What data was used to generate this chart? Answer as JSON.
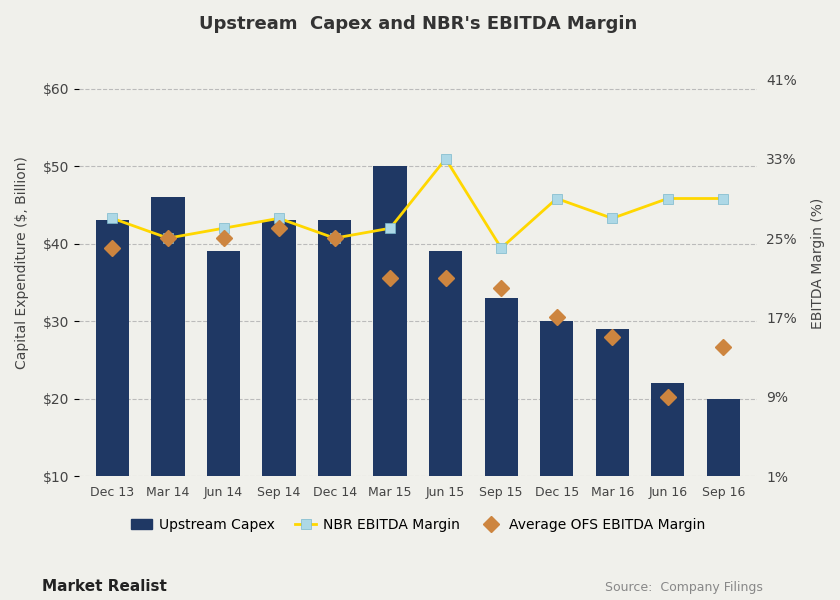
{
  "title": "Upstream  Capex and NBR's EBITDA Margin",
  "categories": [
    "Dec 13",
    "Mar 14",
    "Jun 14",
    "Sep 14",
    "Dec 14",
    "Mar 15",
    "Jun 15",
    "Sep 15",
    "Dec 15",
    "Mar 16",
    "Jun 16",
    "Sep 16"
  ],
  "capex": [
    43,
    46,
    39,
    43,
    43,
    50,
    39,
    33,
    30,
    29,
    22,
    20
  ],
  "nbr_ebitda": [
    27,
    25,
    26,
    27,
    25,
    26,
    33,
    24,
    29,
    27,
    29,
    29
  ],
  "avg_ofs_ebitda": [
    24,
    25,
    25,
    26,
    25,
    21,
    21,
    20,
    17,
    15,
    9,
    14
  ],
  "bar_color": "#1f3864",
  "nbr_line_color": "#ffd700",
  "nbr_marker_color": "#add8e6",
  "nbr_marker_edge": "#7ab8cc",
  "ofs_marker_color": "#cd853f",
  "ylabel_left": "Capital Expenditure ($, Billion)",
  "ylabel_right": "EBITDA Margin (%)",
  "ylim_left": [
    10,
    65
  ],
  "ylim_right": [
    1,
    44
  ],
  "yticks_left": [
    10,
    20,
    30,
    40,
    50,
    60
  ],
  "ytick_labels_left": [
    "$10",
    "$20",
    "$30",
    "$40",
    "$50",
    "$60"
  ],
  "ytick_labels_right": [
    "1%",
    "9%",
    "17%",
    "25%",
    "33%",
    "41%"
  ],
  "yticks_right": [
    1,
    9,
    17,
    25,
    33,
    41
  ],
  "bg_color": "#f0f0eb",
  "grid_color": "#bbbbbb",
  "source_text": "Source:  Company Filings",
  "watermark": "Market Realist"
}
